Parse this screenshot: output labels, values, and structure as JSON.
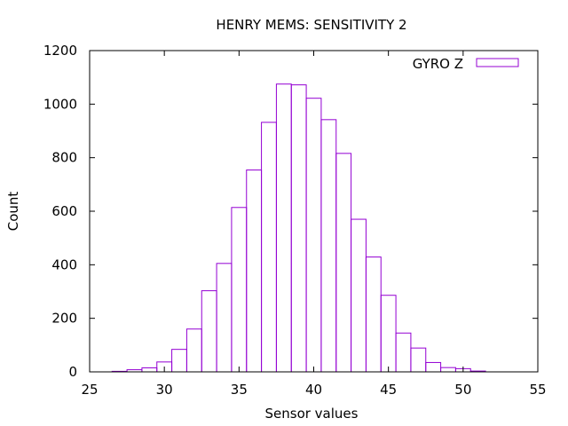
{
  "chart_data": {
    "type": "bar",
    "title": "HENRY MEMS: SENSITIVITY 2",
    "xlabel": "Sensor values",
    "ylabel": "Count",
    "xlim": [
      25,
      55
    ],
    "ylim": [
      0,
      1200
    ],
    "x_ticks": [
      25,
      30,
      35,
      40,
      45,
      50,
      55
    ],
    "y_ticks": [
      0,
      200,
      400,
      600,
      800,
      1000,
      1200
    ],
    "grid": false,
    "legend_position": "top-right",
    "bar_color": "#9400d3",
    "series": [
      {
        "name": "GYRO Z",
        "bin_width": 1,
        "bin_centers": [
          27,
          28,
          29,
          30,
          31,
          32,
          33,
          34,
          35,
          36,
          37,
          38,
          39,
          40,
          41,
          42,
          43,
          44,
          45,
          46,
          47,
          48,
          49,
          50,
          51
        ],
        "values": [
          2,
          8,
          15,
          37,
          84,
          160,
          303,
          405,
          614,
          754,
          932,
          1075,
          1072,
          1022,
          942,
          816,
          570,
          429,
          286,
          145,
          89,
          35,
          16,
          12,
          3
        ]
      }
    ]
  }
}
